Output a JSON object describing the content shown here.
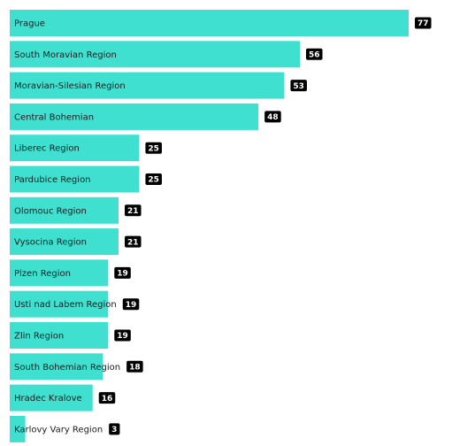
{
  "chart_data": {
    "type": "bar",
    "orientation": "horizontal",
    "title": "",
    "xlabel": "",
    "ylabel": "",
    "xlim": [
      0,
      77
    ],
    "grid": false,
    "legend": "none",
    "colors": {
      "bar": "#40E0D0",
      "value_badge": "#000000",
      "value_text": "#FFFFFF",
      "label_text": "#1A1A1A"
    },
    "categories": [
      "Prague",
      "South Moravian Region",
      "Moravian-Silesian Region",
      "Central Bohemian",
      "Liberec Region",
      "Pardubice Region",
      "Olomouc Region",
      "Vysocina Region",
      "Plzen Region",
      "Usti nad Labem Region",
      "Zlin Region",
      "South Bohemian Region",
      "Hradec Kralove",
      "Karlovy Vary Region"
    ],
    "values": [
      77,
      56,
      53,
      48,
      25,
      25,
      21,
      21,
      19,
      19,
      19,
      18,
      16,
      3
    ]
  }
}
